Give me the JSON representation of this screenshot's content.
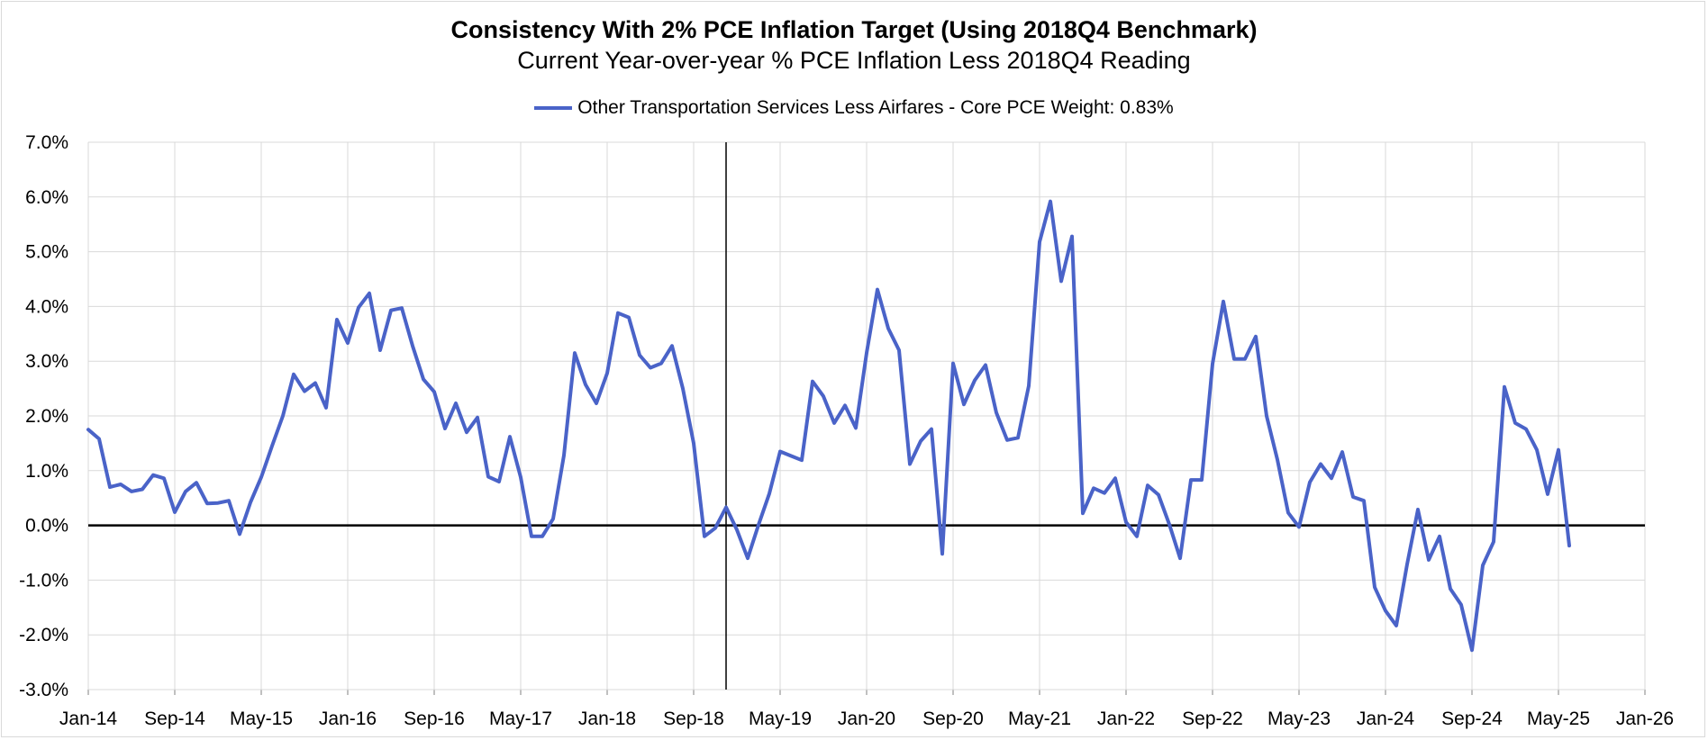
{
  "chart_data": {
    "type": "line",
    "title": "Consistency With 2% PCE Inflation Target (Using 2018Q4 Benchmark)",
    "subtitle": "Current Year-over-year % PCE Inflation Less 2018Q4 Reading",
    "xlabel": "",
    "ylabel": "",
    "ylim": [
      -3.0,
      7.0
    ],
    "y_ticks": [
      "7.0%",
      "6.0%",
      "5.0%",
      "4.0%",
      "3.0%",
      "2.0%",
      "1.0%",
      "0.0%",
      "-1.0%",
      "-2.0%",
      "-3.0%"
    ],
    "x_ticks": [
      "Jan-14",
      "Sep-14",
      "May-15",
      "Jan-16",
      "Sep-16",
      "May-17",
      "Jan-18",
      "Sep-18",
      "May-19",
      "Jan-20",
      "Sep-20",
      "May-21",
      "Jan-22",
      "Sep-22",
      "May-23",
      "Jan-24",
      "Sep-24",
      "May-25",
      "Jan-26"
    ],
    "x_start": "Jan-14",
    "x_end": "Jan-26",
    "benchmark_line": "Dec-18",
    "grid": true,
    "legend_position": "top-center",
    "series": [
      {
        "name": "Other Transportation Services Less Airfares - Core PCE Weight: 0.83%",
        "color": "#4a63c8",
        "start": "Jan-14",
        "values": [
          1.75,
          1.58,
          0.7,
          0.75,
          0.62,
          0.66,
          0.92,
          0.86,
          0.24,
          0.62,
          0.78,
          0.4,
          0.41,
          0.45,
          -0.16,
          0.42,
          0.88,
          1.45,
          2.0,
          2.76,
          2.45,
          2.6,
          2.15,
          3.76,
          3.33,
          3.98,
          4.24,
          3.2,
          3.93,
          3.97,
          3.28,
          2.67,
          2.44,
          1.77,
          2.23,
          1.7,
          1.97,
          0.89,
          0.8,
          1.62,
          0.88,
          -0.2,
          -0.2,
          0.12,
          1.28,
          3.15,
          2.57,
          2.23,
          2.78,
          3.88,
          3.8,
          3.11,
          2.88,
          2.96,
          3.28,
          2.5,
          1.5,
          -0.2,
          -0.05,
          0.33,
          -0.08,
          -0.6,
          0.01,
          0.58,
          1.35,
          1.27,
          1.19,
          2.63,
          2.36,
          1.87,
          2.19,
          1.78,
          3.15,
          4.31,
          3.6,
          3.2,
          1.12,
          1.54,
          1.76,
          -0.52,
          2.96,
          2.21,
          2.65,
          2.93,
          2.06,
          1.56,
          1.6,
          2.55,
          5.18,
          5.92,
          4.46,
          5.28,
          0.22,
          0.68,
          0.59,
          0.86,
          0.06,
          -0.2,
          0.73,
          0.56,
          0.02,
          -0.6,
          0.83,
          0.83,
          2.95,
          4.09,
          3.04,
          3.04,
          3.45,
          2.0,
          1.2,
          0.23,
          -0.03,
          0.79,
          1.12,
          0.86,
          1.34,
          0.52,
          0.45,
          -1.13,
          -1.56,
          -1.83,
          -0.71,
          0.29,
          -0.63,
          -0.2,
          -1.16,
          -1.45,
          -2.28,
          -0.73,
          -0.3,
          2.53,
          1.87,
          1.76,
          1.38,
          0.57,
          1.38,
          -0.37
        ]
      }
    ]
  }
}
